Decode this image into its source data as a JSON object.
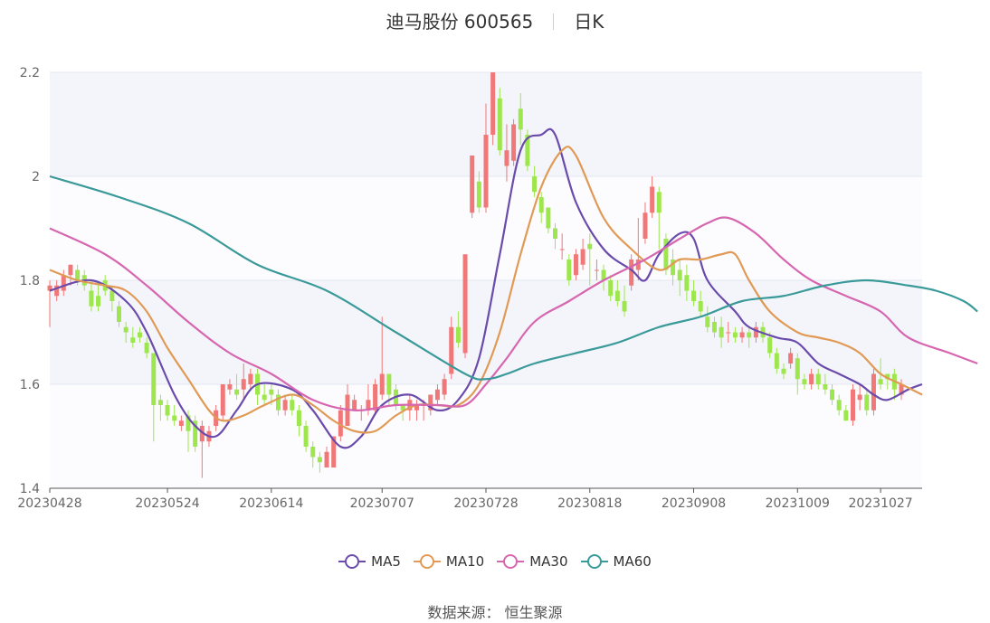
{
  "title": {
    "stock_name": "迪马股份 600565",
    "period": "日K"
  },
  "source": "数据来源： 恒生聚源",
  "colors": {
    "up": "#f07878",
    "down": "#9ee64e",
    "MA5": "#6a4bab",
    "MA10": "#e09a55",
    "MA30": "#d766b0",
    "MA60": "#3a9999"
  },
  "chart_data": {
    "type": "candlestick",
    "x_tick_labels": [
      "20230428",
      "20230524",
      "20230614",
      "20230707",
      "20230728",
      "20230818",
      "20230908",
      "20231009",
      "20231027"
    ],
    "x_tick_indices": [
      0,
      17,
      32,
      48,
      63,
      78,
      93,
      108,
      120
    ],
    "ylim": [
      1.4,
      2.2
    ],
    "y_ticks": [
      1.4,
      1.6,
      1.8,
      2,
      2.2
    ],
    "y_tick_labels": [
      "1.4",
      "1.6",
      "1.8",
      "2",
      "2.2"
    ],
    "legend": [
      "MA5",
      "MA10",
      "MA30",
      "MA60"
    ],
    "candles": [
      [
        1.78,
        1.79,
        1.71,
        1.8
      ],
      [
        1.77,
        1.79,
        1.76,
        1.8
      ],
      [
        1.78,
        1.81,
        1.77,
        1.82
      ],
      [
        1.81,
        1.83,
        1.79,
        1.83
      ],
      [
        1.82,
        1.8,
        1.79,
        1.83
      ],
      [
        1.81,
        1.79,
        1.78,
        1.82
      ],
      [
        1.78,
        1.75,
        1.74,
        1.8
      ],
      [
        1.77,
        1.75,
        1.74,
        1.79
      ],
      [
        1.8,
        1.78,
        1.77,
        1.81
      ],
      [
        1.78,
        1.76,
        1.74,
        1.79
      ],
      [
        1.75,
        1.72,
        1.71,
        1.76
      ],
      [
        1.71,
        1.7,
        1.68,
        1.72
      ],
      [
        1.69,
        1.68,
        1.67,
        1.71
      ],
      [
        1.7,
        1.69,
        1.68,
        1.71
      ],
      [
        1.68,
        1.66,
        1.65,
        1.69
      ],
      [
        1.66,
        1.56,
        1.49,
        1.66
      ],
      [
        1.57,
        1.56,
        1.53,
        1.58
      ],
      [
        1.56,
        1.54,
        1.53,
        1.57
      ],
      [
        1.54,
        1.53,
        1.52,
        1.56
      ],
      [
        1.52,
        1.53,
        1.51,
        1.54
      ],
      [
        1.54,
        1.51,
        1.47,
        1.55
      ],
      [
        1.53,
        1.48,
        1.47,
        1.54
      ],
      [
        1.49,
        1.52,
        1.42,
        1.53
      ],
      [
        1.49,
        1.51,
        1.48,
        1.52
      ],
      [
        1.52,
        1.55,
        1.51,
        1.56
      ],
      [
        1.54,
        1.6,
        1.53,
        1.6
      ],
      [
        1.59,
        1.6,
        1.58,
        1.61
      ],
      [
        1.59,
        1.58,
        1.57,
        1.62
      ],
      [
        1.59,
        1.61,
        1.57,
        1.64
      ],
      [
        1.6,
        1.62,
        1.59,
        1.63
      ],
      [
        1.62,
        1.58,
        1.56,
        1.63
      ],
      [
        1.58,
        1.57,
        1.56,
        1.6
      ],
      [
        1.59,
        1.58,
        1.56,
        1.6
      ],
      [
        1.58,
        1.55,
        1.54,
        1.59
      ],
      [
        1.55,
        1.57,
        1.54,
        1.58
      ],
      [
        1.57,
        1.55,
        1.54,
        1.58
      ],
      [
        1.55,
        1.52,
        1.5,
        1.56
      ],
      [
        1.52,
        1.48,
        1.47,
        1.53
      ],
      [
        1.48,
        1.46,
        1.44,
        1.49
      ],
      [
        1.46,
        1.45,
        1.43,
        1.47
      ],
      [
        1.44,
        1.47,
        1.44,
        1.48
      ],
      [
        1.44,
        1.5,
        1.44,
        1.5
      ],
      [
        1.5,
        1.55,
        1.49,
        1.56
      ],
      [
        1.52,
        1.58,
        1.52,
        1.6
      ],
      [
        1.55,
        1.57,
        1.55,
        1.58
      ],
      [
        1.55,
        1.55,
        1.53,
        1.56
      ],
      [
        1.55,
        1.57,
        1.54,
        1.6
      ],
      [
        1.55,
        1.6,
        1.54,
        1.61
      ],
      [
        1.58,
        1.62,
        1.57,
        1.73
      ],
      [
        1.62,
        1.58,
        1.56,
        1.62
      ],
      [
        1.59,
        1.56,
        1.55,
        1.6
      ],
      [
        1.56,
        1.55,
        1.53,
        1.56
      ],
      [
        1.55,
        1.57,
        1.53,
        1.58
      ],
      [
        1.55,
        1.56,
        1.53,
        1.57
      ],
      [
        1.56,
        1.56,
        1.53,
        1.57
      ],
      [
        1.55,
        1.58,
        1.54,
        1.58
      ],
      [
        1.57,
        1.59,
        1.56,
        1.6
      ],
      [
        1.58,
        1.61,
        1.57,
        1.62
      ],
      [
        1.62,
        1.71,
        1.61,
        1.73
      ],
      [
        1.71,
        1.68,
        1.67,
        1.74
      ],
      [
        1.66,
        1.85,
        1.65,
        1.85
      ],
      [
        1.93,
        2.04,
        1.92,
        2.04
      ],
      [
        1.99,
        1.94,
        1.93,
        2.01
      ],
      [
        1.94,
        2.08,
        1.93,
        2.14
      ],
      [
        2.08,
        2.2,
        2.06,
        2.2
      ],
      [
        2.15,
        2.05,
        2.04,
        2.17
      ],
      [
        2.02,
        2.05,
        1.99,
        2.1
      ],
      [
        2.03,
        2.1,
        2.02,
        2.11
      ],
      [
        2.13,
        2.09,
        2.06,
        2.16
      ],
      [
        2.08,
        2.02,
        2.01,
        2.09
      ],
      [
        2.0,
        1.97,
        1.96,
        2.02
      ],
      [
        1.96,
        1.93,
        1.91,
        1.97
      ],
      [
        1.94,
        1.9,
        1.89,
        1.94
      ],
      [
        1.9,
        1.88,
        1.86,
        1.91
      ],
      [
        1.86,
        1.86,
        1.84,
        1.89
      ],
      [
        1.84,
        1.8,
        1.79,
        1.85
      ],
      [
        1.81,
        1.85,
        1.8,
        1.86
      ],
      [
        1.83,
        1.86,
        1.82,
        1.88
      ],
      [
        1.87,
        1.86,
        1.79,
        1.89
      ],
      [
        1.82,
        1.82,
        1.8,
        1.84
      ],
      [
        1.82,
        1.8,
        1.78,
        1.83
      ],
      [
        1.8,
        1.77,
        1.76,
        1.81
      ],
      [
        1.78,
        1.76,
        1.75,
        1.8
      ],
      [
        1.76,
        1.74,
        1.73,
        1.79
      ],
      [
        1.79,
        1.84,
        1.78,
        1.85
      ],
      [
        1.82,
        1.84,
        1.8,
        1.92
      ],
      [
        1.88,
        1.93,
        1.87,
        1.95
      ],
      [
        1.93,
        1.98,
        1.92,
        2.0
      ],
      [
        1.97,
        1.93,
        1.86,
        1.98
      ],
      [
        1.88,
        1.82,
        1.81,
        1.89
      ],
      [
        1.84,
        1.81,
        1.79,
        1.86
      ],
      [
        1.82,
        1.8,
        1.77,
        1.84
      ],
      [
        1.81,
        1.78,
        1.76,
        1.83
      ],
      [
        1.78,
        1.76,
        1.75,
        1.8
      ],
      [
        1.76,
        1.74,
        1.73,
        1.78
      ],
      [
        1.73,
        1.71,
        1.7,
        1.75
      ],
      [
        1.72,
        1.7,
        1.69,
        1.73
      ],
      [
        1.71,
        1.69,
        1.67,
        1.73
      ],
      [
        1.7,
        1.7,
        1.68,
        1.72
      ],
      [
        1.7,
        1.69,
        1.68,
        1.71
      ],
      [
        1.69,
        1.7,
        1.68,
        1.71
      ],
      [
        1.7,
        1.69,
        1.67,
        1.71
      ],
      [
        1.69,
        1.71,
        1.68,
        1.72
      ],
      [
        1.71,
        1.69,
        1.68,
        1.72
      ],
      [
        1.69,
        1.66,
        1.65,
        1.7
      ],
      [
        1.66,
        1.63,
        1.62,
        1.67
      ],
      [
        1.63,
        1.62,
        1.61,
        1.64
      ],
      [
        1.64,
        1.66,
        1.63,
        1.67
      ],
      [
        1.65,
        1.61,
        1.58,
        1.66
      ],
      [
        1.61,
        1.6,
        1.59,
        1.62
      ],
      [
        1.6,
        1.62,
        1.59,
        1.63
      ],
      [
        1.62,
        1.6,
        1.59,
        1.63
      ],
      [
        1.6,
        1.59,
        1.58,
        1.62
      ],
      [
        1.59,
        1.57,
        1.56,
        1.6
      ],
      [
        1.57,
        1.55,
        1.54,
        1.58
      ],
      [
        1.55,
        1.53,
        1.53,
        1.56
      ],
      [
        1.53,
        1.59,
        1.52,
        1.6
      ],
      [
        1.57,
        1.58,
        1.55,
        1.6
      ],
      [
        1.58,
        1.55,
        1.54,
        1.59
      ],
      [
        1.55,
        1.62,
        1.54,
        1.63
      ],
      [
        1.61,
        1.6,
        1.59,
        1.65
      ],
      [
        1.62,
        1.61,
        1.59,
        1.62
      ],
      [
        1.62,
        1.59,
        1.57,
        1.63
      ],
      [
        1.58,
        1.6,
        1.57,
        1.61
      ]
    ],
    "series": [
      {
        "name": "MA5",
        "points": [
          [
            0,
            1.78
          ],
          [
            6,
            1.8
          ],
          [
            11,
            1.76
          ],
          [
            14,
            1.7
          ],
          [
            18,
            1.58
          ],
          [
            21,
            1.52
          ],
          [
            24,
            1.5
          ],
          [
            27,
            1.55
          ],
          [
            30,
            1.6
          ],
          [
            35,
            1.59
          ],
          [
            38,
            1.55
          ],
          [
            42,
            1.48
          ],
          [
            45,
            1.5
          ],
          [
            48,
            1.56
          ],
          [
            52,
            1.58
          ],
          [
            56,
            1.55
          ],
          [
            59,
            1.57
          ],
          [
            62,
            1.65
          ],
          [
            65,
            1.85
          ],
          [
            68,
            2.05
          ],
          [
            71,
            2.08
          ],
          [
            73,
            2.08
          ],
          [
            76,
            1.95
          ],
          [
            80,
            1.86
          ],
          [
            84,
            1.82
          ],
          [
            86,
            1.8
          ],
          [
            88,
            1.85
          ],
          [
            91,
            1.89
          ],
          [
            93,
            1.88
          ],
          [
            95,
            1.8
          ],
          [
            99,
            1.74
          ],
          [
            101,
            1.71
          ],
          [
            105,
            1.69
          ],
          [
            108,
            1.68
          ],
          [
            111,
            1.64
          ],
          [
            114,
            1.62
          ],
          [
            117,
            1.6
          ],
          [
            119,
            1.58
          ],
          [
            121,
            1.57
          ],
          [
            124,
            1.59
          ],
          [
            126,
            1.6
          ]
        ]
      },
      {
        "name": "MA10",
        "points": [
          [
            0,
            1.82
          ],
          [
            4,
            1.8
          ],
          [
            8,
            1.79
          ],
          [
            11,
            1.78
          ],
          [
            14,
            1.74
          ],
          [
            17,
            1.67
          ],
          [
            20,
            1.61
          ],
          [
            23,
            1.55
          ],
          [
            25,
            1.53
          ],
          [
            28,
            1.54
          ],
          [
            31,
            1.56
          ],
          [
            35,
            1.58
          ],
          [
            38,
            1.56
          ],
          [
            41,
            1.53
          ],
          [
            44,
            1.51
          ],
          [
            47,
            1.51
          ],
          [
            50,
            1.54
          ],
          [
            53,
            1.56
          ],
          [
            56,
            1.56
          ],
          [
            59,
            1.56
          ],
          [
            62,
            1.6
          ],
          [
            65,
            1.7
          ],
          [
            68,
            1.85
          ],
          [
            71,
            1.98
          ],
          [
            74,
            2.05
          ],
          [
            76,
            2.04
          ],
          [
            80,
            1.92
          ],
          [
            84,
            1.86
          ],
          [
            88,
            1.82
          ],
          [
            91,
            1.84
          ],
          [
            94,
            1.84
          ],
          [
            97,
            1.85
          ],
          [
            99,
            1.85
          ],
          [
            101,
            1.8
          ],
          [
            104,
            1.74
          ],
          [
            108,
            1.7
          ],
          [
            111,
            1.69
          ],
          [
            114,
            1.68
          ],
          [
            117,
            1.66
          ],
          [
            120,
            1.62
          ],
          [
            123,
            1.6
          ],
          [
            126,
            1.58
          ]
        ]
      },
      {
        "name": "MA30",
        "points": [
          [
            0,
            1.9
          ],
          [
            8,
            1.85
          ],
          [
            14,
            1.79
          ],
          [
            20,
            1.72
          ],
          [
            26,
            1.66
          ],
          [
            32,
            1.62
          ],
          [
            38,
            1.57
          ],
          [
            44,
            1.55
          ],
          [
            50,
            1.56
          ],
          [
            56,
            1.56
          ],
          [
            60,
            1.56
          ],
          [
            63,
            1.6
          ],
          [
            66,
            1.65
          ],
          [
            70,
            1.72
          ],
          [
            75,
            1.76
          ],
          [
            80,
            1.8
          ],
          [
            86,
            1.84
          ],
          [
            91,
            1.88
          ],
          [
            95,
            1.91
          ],
          [
            98,
            1.92
          ],
          [
            102,
            1.89
          ],
          [
            106,
            1.84
          ],
          [
            110,
            1.8
          ],
          [
            115,
            1.77
          ],
          [
            120,
            1.74
          ],
          [
            124,
            1.69
          ],
          [
            130,
            1.66
          ],
          [
            134,
            1.64
          ]
        ]
      },
      {
        "name": "MA60",
        "points": [
          [
            0,
            2.0
          ],
          [
            10,
            1.96
          ],
          [
            20,
            1.91
          ],
          [
            30,
            1.83
          ],
          [
            40,
            1.78
          ],
          [
            50,
            1.7
          ],
          [
            60,
            1.62
          ],
          [
            63,
            1.61
          ],
          [
            66,
            1.62
          ],
          [
            70,
            1.64
          ],
          [
            76,
            1.66
          ],
          [
            82,
            1.68
          ],
          [
            88,
            1.71
          ],
          [
            94,
            1.73
          ],
          [
            100,
            1.76
          ],
          [
            106,
            1.77
          ],
          [
            112,
            1.79
          ],
          [
            118,
            1.8
          ],
          [
            124,
            1.79
          ],
          [
            128,
            1.78
          ],
          [
            132,
            1.76
          ],
          [
            134,
            1.74
          ]
        ]
      }
    ]
  }
}
